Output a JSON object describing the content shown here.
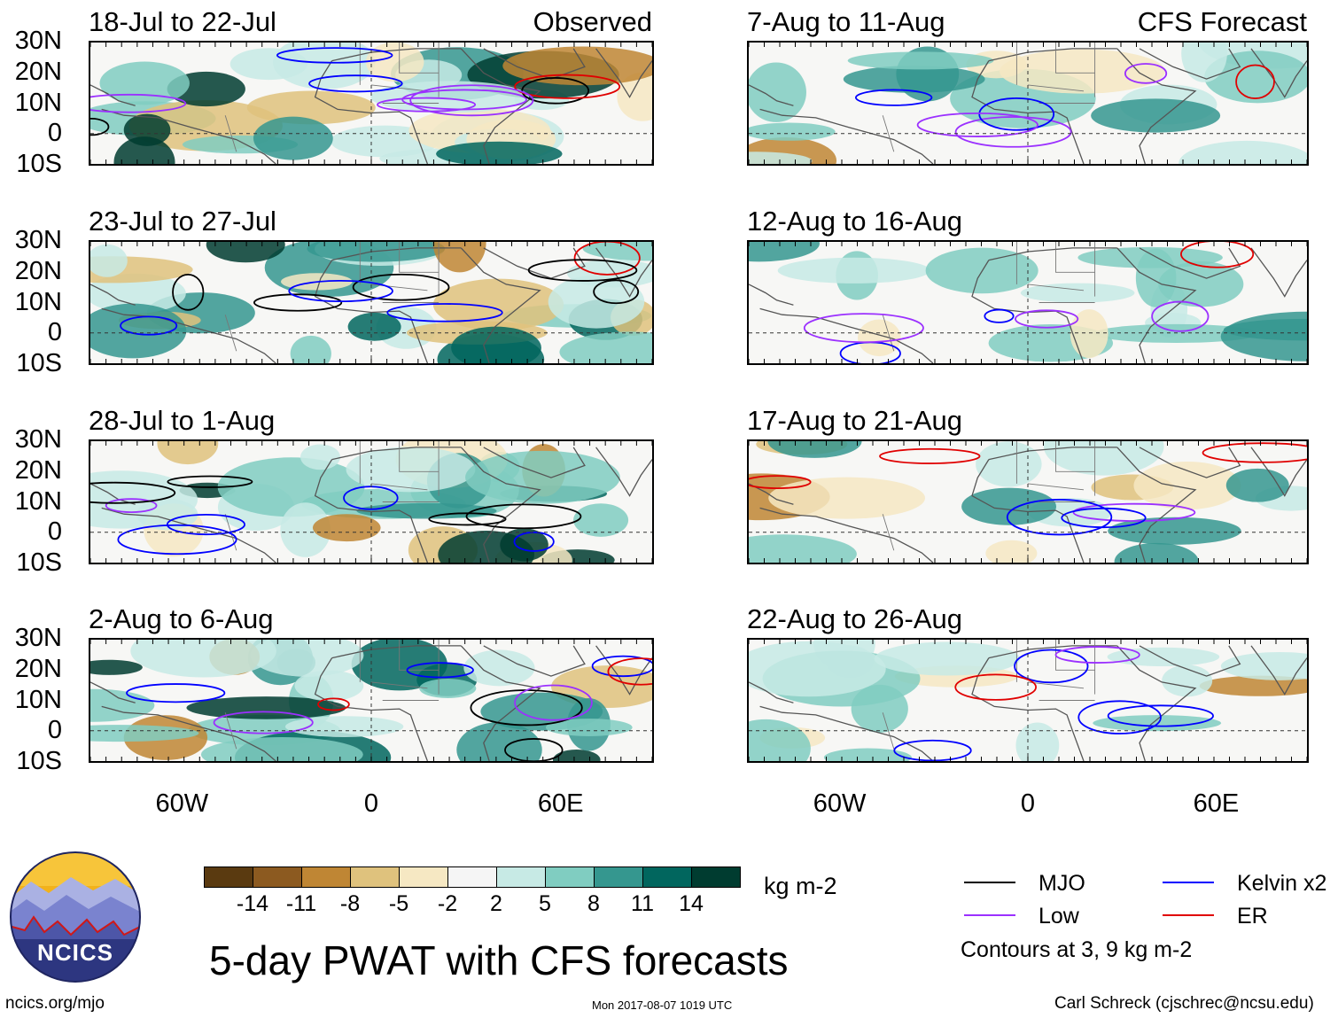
{
  "observed_label": "Observed",
  "forecast_label": "CFS Forecast",
  "chart_data": {
    "type": "heatmap",
    "title": "5-day PWAT with CFS forecasts",
    "variable": "PWAT anomaly",
    "units": "kg m-2",
    "lat_ticks": [
      "30N",
      "20N",
      "10N",
      "0",
      "10S"
    ],
    "lon_ticks": [
      "60W",
      "0",
      "60E"
    ],
    "ylim": [
      -10,
      30
    ],
    "panels": [
      {
        "label": "18-Jul to 22-Jul",
        "kind": "Observed"
      },
      {
        "label": "23-Jul to 27-Jul",
        "kind": "Observed"
      },
      {
        "label": "28-Jul to 1-Aug",
        "kind": "Observed"
      },
      {
        "label": "2-Aug to 6-Aug",
        "kind": "Observed"
      },
      {
        "label": "7-Aug to 11-Aug",
        "kind": "CFS Forecast"
      },
      {
        "label": "12-Aug to 16-Aug",
        "kind": "CFS Forecast"
      },
      {
        "label": "17-Aug to 21-Aug",
        "kind": "CFS Forecast"
      },
      {
        "label": "22-Aug to 26-Aug",
        "kind": "CFS Forecast"
      }
    ],
    "colorbar": {
      "labels": [
        "-14",
        "-11",
        "-8",
        "-5",
        "-2",
        "2",
        "5",
        "8",
        "11",
        "14"
      ],
      "colors": [
        "#5a3a10",
        "#8c5a20",
        "#bf8634",
        "#dfc27d",
        "#f6e8c3",
        "#f5f5f5",
        "#c7eae5",
        "#80cdc1",
        "#35978f",
        "#01665e",
        "#003c30"
      ]
    },
    "contour_legend": [
      {
        "name": "MJO",
        "color": "#000000"
      },
      {
        "name": "Kelvin x2",
        "color": "#0000ff"
      },
      {
        "name": "Low",
        "color": "#9b30ff"
      },
      {
        "name": "ER",
        "color": "#e00000"
      }
    ],
    "contour_note": "Contours at 3, 9 kg m-2"
  },
  "footer": {
    "logo_text": "NCICS",
    "url": "ncics.org/mjo",
    "timestamp": "Mon 2017-08-07 1019 UTC",
    "credit": "Carl Schreck (cjschrec@ncsu.edu)"
  }
}
